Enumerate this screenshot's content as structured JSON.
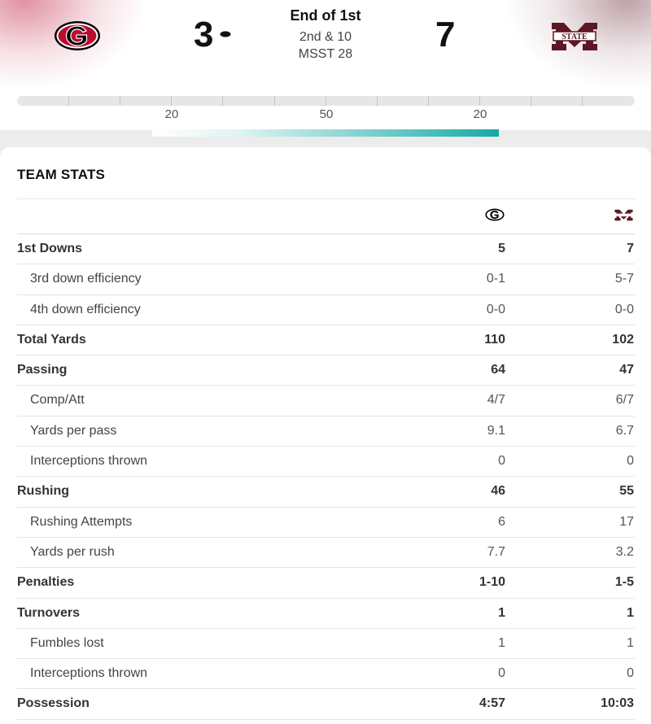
{
  "game": {
    "status": "End of 1st",
    "down_distance": "2nd & 10",
    "ball_spot": "MSST 28",
    "home": {
      "score": "3",
      "logo": "georgia-g-logo",
      "color": "#ba0c2f",
      "has_possession": true
    },
    "away": {
      "score": "7",
      "logo": "mississippi-state-m-logo",
      "color": "#5d1725",
      "logo_text": "STATE"
    }
  },
  "field": {
    "yard_labels": [
      "20",
      "50",
      "20"
    ],
    "drive_progress": {
      "start_fraction": 0.22,
      "end_fraction": 0.78
    }
  },
  "team_stats": {
    "title": "TEAM STATS",
    "rows": [
      {
        "label": "1st Downs",
        "home": "5",
        "away": "7",
        "level": "main"
      },
      {
        "label": "3rd down efficiency",
        "home": "0-1",
        "away": "5-7",
        "level": "sub"
      },
      {
        "label": "4th down efficiency",
        "home": "0-0",
        "away": "0-0",
        "level": "sub"
      },
      {
        "label": "Total Yards",
        "home": "110",
        "away": "102",
        "level": "main"
      },
      {
        "label": "Passing",
        "home": "64",
        "away": "47",
        "level": "main"
      },
      {
        "label": "Comp/Att",
        "home": "4/7",
        "away": "6/7",
        "level": "sub"
      },
      {
        "label": "Yards per pass",
        "home": "9.1",
        "away": "6.7",
        "level": "sub"
      },
      {
        "label": "Interceptions thrown",
        "home": "0",
        "away": "0",
        "level": "sub"
      },
      {
        "label": "Rushing",
        "home": "46",
        "away": "55",
        "level": "main"
      },
      {
        "label": "Rushing Attempts",
        "home": "6",
        "away": "17",
        "level": "sub"
      },
      {
        "label": "Yards per rush",
        "home": "7.7",
        "away": "3.2",
        "level": "sub"
      },
      {
        "label": "Penalties",
        "home": "1-10",
        "away": "1-5",
        "level": "main"
      },
      {
        "label": "Turnovers",
        "home": "1",
        "away": "1",
        "level": "main"
      },
      {
        "label": "Fumbles lost",
        "home": "1",
        "away": "1",
        "level": "sub"
      },
      {
        "label": "Interceptions thrown",
        "home": "0",
        "away": "0",
        "level": "sub"
      },
      {
        "label": "Possession",
        "home": "4:57",
        "away": "10:03",
        "level": "main"
      }
    ]
  }
}
